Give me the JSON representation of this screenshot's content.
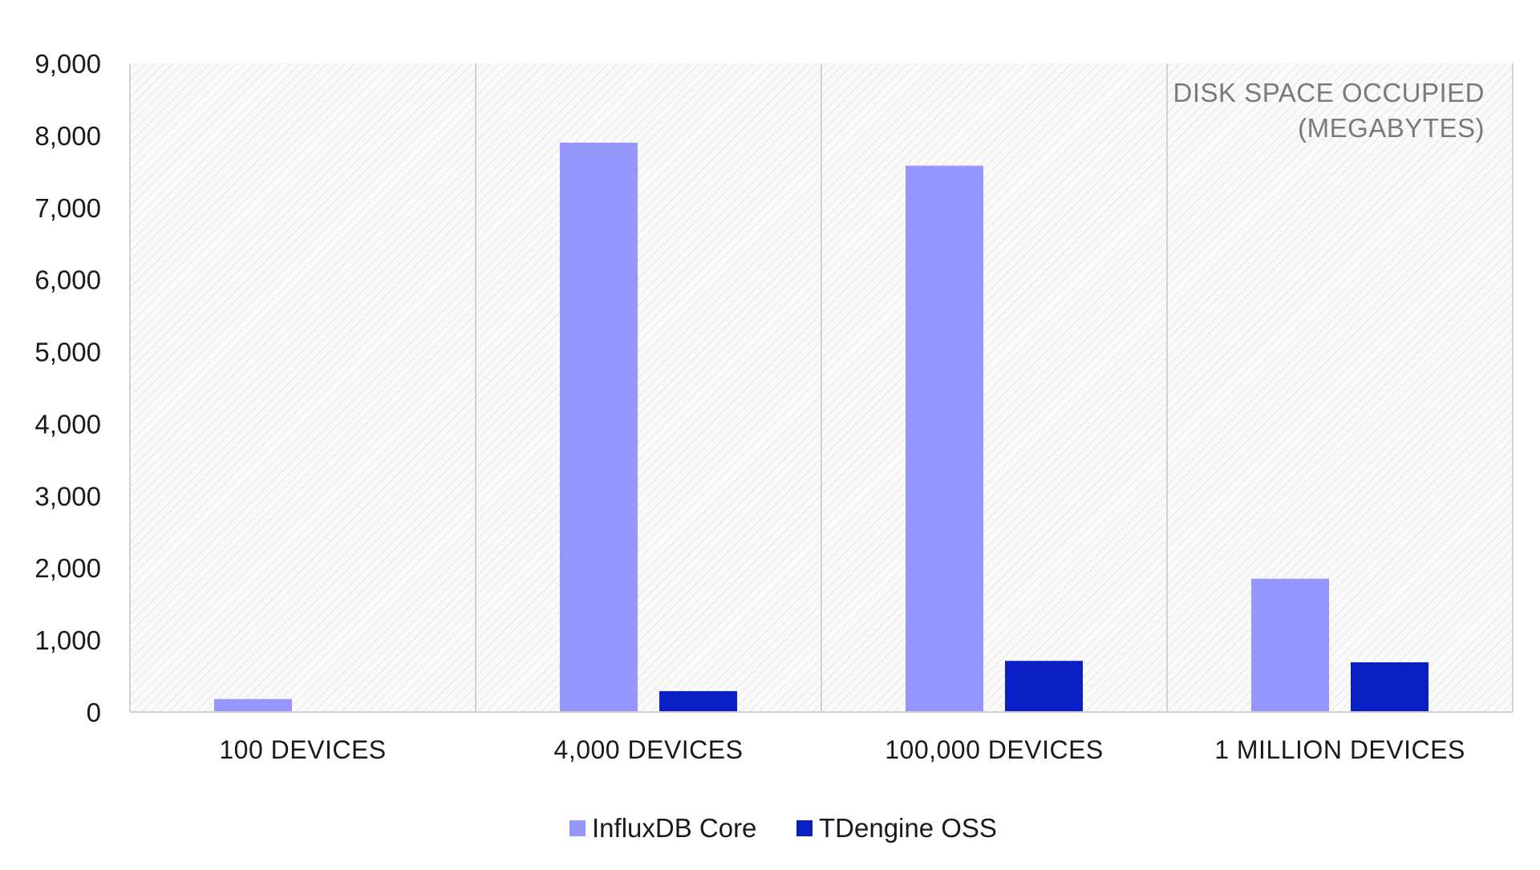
{
  "chart_data": {
    "type": "bar",
    "title": "",
    "xlabel": "",
    "ylabel": "",
    "annotation": [
      "DISK SPACE OCCUPIED",
      "(MEGABYTES)"
    ],
    "categories": [
      "100 DEVICES",
      "4,000 DEVICES",
      "100,000 DEVICES",
      "1 MILLION DEVICES"
    ],
    "series": [
      {
        "name": "InfluxDB Core",
        "color": "#9696ff",
        "values": [
          180,
          7900,
          7580,
          1850
        ]
      },
      {
        "name": "TDengine OSS",
        "color": "#0a1fc4",
        "values": [
          0,
          290,
          710,
          690
        ]
      }
    ],
    "ylim": [
      0,
      9000
    ],
    "yticks": [
      0,
      1000,
      2000,
      3000,
      4000,
      5000,
      6000,
      7000,
      8000,
      9000
    ],
    "ytick_labels": [
      "0",
      "1,000",
      "2,000",
      "3,000",
      "4,000",
      "5,000",
      "6,000",
      "7,000",
      "8,000",
      "9,000"
    ],
    "grid": "vertical category separators",
    "background": "diagonal hatch",
    "legend_position": "bottom-center"
  }
}
